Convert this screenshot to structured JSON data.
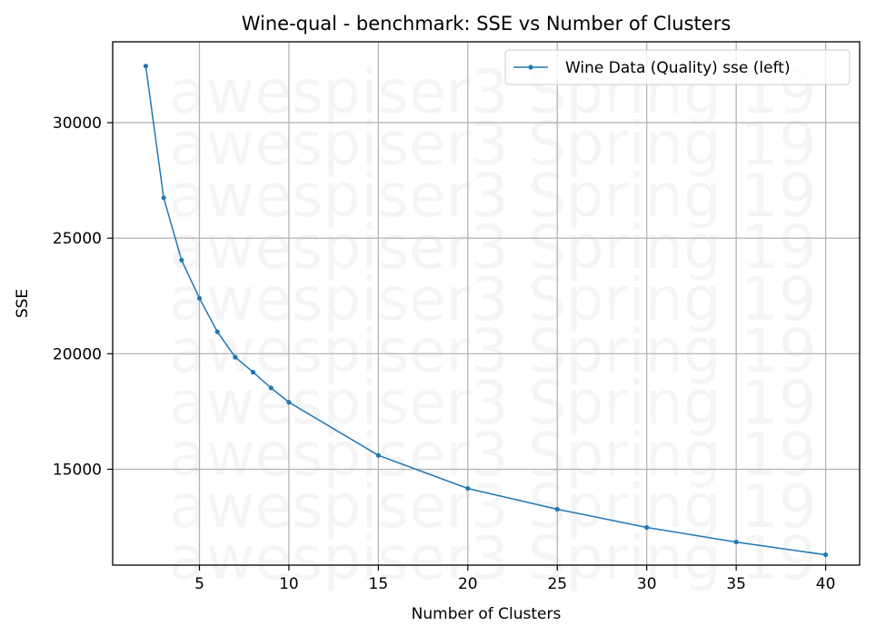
{
  "chart_data": {
    "type": "line",
    "title": "Wine-qual - benchmark: SSE vs Number of Clusters",
    "xlabel": "Number of Clusters",
    "ylabel": "SSE",
    "x_ticks": [
      5,
      10,
      15,
      20,
      25,
      30,
      35,
      40
    ],
    "y_ticks": [
      15000,
      20000,
      25000,
      30000
    ],
    "xlim": [
      0.15,
      41.9
    ],
    "ylim": [
      10850,
      33500
    ],
    "grid": true,
    "legend_position": "top-right",
    "watermark": "awespiser3 Spring 19",
    "series": [
      {
        "name": "Wine Data (Quality) sse (left)",
        "color": "#1f77b4",
        "x": [
          2,
          3,
          4,
          5,
          6,
          7,
          8,
          9,
          10,
          15,
          20,
          25,
          30,
          35,
          40
        ],
        "y": [
          32450,
          26750,
          24050,
          22400,
          20950,
          19850,
          19200,
          18520,
          17900,
          15600,
          14170,
          13270,
          12480,
          11850,
          11300
        ]
      }
    ]
  }
}
